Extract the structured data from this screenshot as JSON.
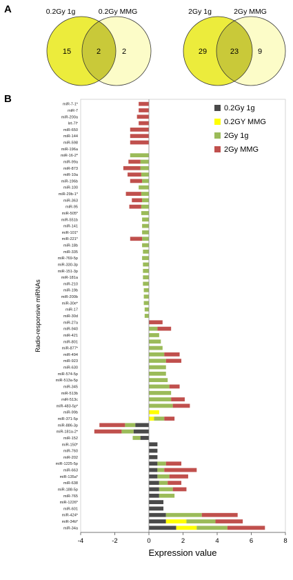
{
  "panels": {
    "a": "A",
    "b": "B"
  },
  "venns": [
    {
      "left_title": "0.2Gy 1g",
      "right_title": "0.2Gy MMG",
      "left_only": "15",
      "overlap": "2",
      "right_only": "2"
    },
    {
      "left_title": "2Gy 1g",
      "right_title": "2Gy MMG",
      "left_only": "29",
      "overlap": "23",
      "right_only": "9"
    }
  ],
  "colors": {
    "venn_left": "#ecec3c",
    "venn_right": "#fcfcc8",
    "venn_overlap": "#c9c939",
    "venn_stroke": "#333333",
    "series": [
      "#4a4a4a",
      "#ffff00",
      "#9bbb59",
      "#c0504d"
    ]
  },
  "chart_data": {
    "type": "bar",
    "orientation": "horizontal",
    "stacked": true,
    "xlabel": "Expression value",
    "ylabel": "Radio-responsive miRNAs",
    "xlim": [
      -4,
      8
    ],
    "xticks": [
      "-4",
      "-2",
      "0",
      "2",
      "4",
      "6",
      "8"
    ],
    "legend_position": "top-right",
    "categories": [
      "miR-7-1*",
      "miR-7",
      "miR-200a",
      "let-7i*",
      "miR-650",
      "miR-144",
      "miR-598",
      "miR-196a",
      "miR-16-2*",
      "miR-99a",
      "miR-873",
      "miR-10a",
      "miR-196b",
      "miR-100",
      "miR-29b-1*",
      "miR-363",
      "miR-95",
      "miR-505*",
      "miR-551b",
      "miR-141",
      "miR-101*",
      "miR-221*",
      "miR-18b",
      "miR-335",
      "miR-769-5p",
      "miR-330-3p",
      "miR-151-3p",
      "miR-181a",
      "miR-210",
      "miR-19b",
      "miR-200b",
      "miR-30e*",
      "miR-17",
      "miR-30d",
      "miR-27a",
      "miR-940",
      "miR-421",
      "miR-801",
      "miR-877*",
      "miR-494",
      "miR-923",
      "miR-630",
      "miR-574-5p",
      "miR-513a-5p",
      "miR-345",
      "miR-513b",
      "miR-513c",
      "miR-483-5p*",
      "miR-99b",
      "miR-371-5p",
      "miR-886-3p",
      "miR-181a-2*",
      "miR-152",
      "miR-150*",
      "miR-760",
      "miR-202",
      "miR-1225-5p",
      "miR-663",
      "miR-135a*",
      "miR-638",
      "miR-188-5p",
      "miR-765",
      "miR-1226*",
      "miR-601",
      "miR-424*",
      "miR-34b*",
      "miR-34a"
    ],
    "series": [
      {
        "name": "0.2Gy 1g",
        "values": [
          0,
          0,
          0,
          0,
          0,
          0,
          0,
          0,
          0,
          0,
          0,
          0,
          0,
          0,
          0,
          0,
          0,
          0,
          0,
          0,
          0,
          0,
          0,
          0,
          0,
          0,
          0,
          0,
          0,
          0,
          0,
          0,
          0,
          0,
          0,
          0,
          0,
          0,
          0,
          0,
          0,
          0,
          0,
          0,
          0,
          0,
          0,
          0,
          0,
          0,
          -0.8,
          -0.9,
          -0.5,
          0.5,
          0.5,
          0.5,
          0.5,
          0.5,
          0.5,
          0.6,
          0.6,
          0.6,
          0.85,
          0.85,
          1.0,
          1.0,
          1.6
        ]
      },
      {
        "name": "0.2GY MMG",
        "values": [
          0,
          0,
          0,
          0,
          0,
          0,
          0,
          0,
          0,
          0,
          0,
          0,
          0,
          0,
          0,
          0,
          0,
          0,
          0,
          0,
          0,
          0,
          0,
          0,
          0,
          0,
          0,
          0,
          0,
          0,
          0,
          0,
          0,
          0,
          0,
          0,
          0,
          0,
          0,
          0,
          0,
          0,
          0,
          0,
          0,
          0,
          0,
          0,
          0.6,
          0.3,
          0,
          0,
          0,
          0,
          0,
          0,
          0,
          0,
          0,
          0,
          0,
          0,
          0,
          0,
          0,
          1.2,
          1.2
        ]
      },
      {
        "name": "2Gy 1g",
        "values": [
          0,
          0,
          0,
          0,
          0,
          0,
          0,
          0,
          -1.1,
          -0.5,
          -0.5,
          -0.45,
          -0.4,
          -0.6,
          -0.45,
          -0.4,
          -0.45,
          -0.45,
          -0.4,
          -0.4,
          -0.4,
          -0.4,
          -0.4,
          -0.35,
          -0.4,
          -0.35,
          -0.35,
          -0.35,
          -0.35,
          -0.3,
          -0.3,
          -0.3,
          -0.25,
          -0.25,
          0,
          0.5,
          0.6,
          0.7,
          0.8,
          0.9,
          1.0,
          1.0,
          1.0,
          1.1,
          1.2,
          1.3,
          1.3,
          1.4,
          0,
          0.6,
          -0.6,
          -0.7,
          -0.45,
          0,
          0,
          0,
          0.5,
          0.4,
          0.7,
          0.5,
          0.8,
          0.9,
          0,
          0,
          2.1,
          1.7,
          1.8
        ]
      },
      {
        "name": "2Gy MMG",
        "values": [
          -0.6,
          -0.6,
          -0.7,
          -0.6,
          -1.1,
          -1.1,
          -1.1,
          0,
          0,
          -0.7,
          -1.0,
          -0.8,
          -0.7,
          0,
          -0.9,
          -0.6,
          -0.7,
          0,
          0,
          0,
          0,
          -0.7,
          0,
          0,
          0,
          0,
          0,
          0,
          0,
          0,
          0,
          0,
          0,
          0,
          0.8,
          0.8,
          0,
          0,
          0,
          0.9,
          0.9,
          0,
          0,
          0,
          0.6,
          0,
          0.8,
          1.0,
          0,
          0.6,
          -1.5,
          -1.6,
          0,
          0,
          0,
          0,
          0.9,
          1.9,
          1.1,
          0.8,
          0.8,
          0,
          0,
          0,
          2.1,
          1.6,
          2.2
        ]
      }
    ]
  }
}
